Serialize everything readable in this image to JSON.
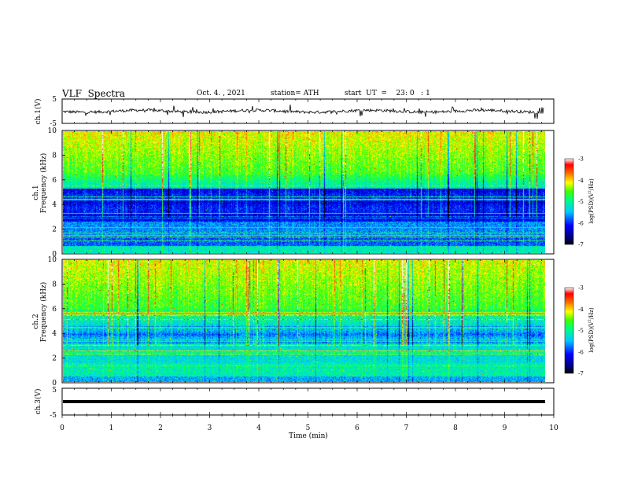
{
  "header": {
    "title": "VLF  Spectra",
    "date": "Oct. 4. , 2021",
    "station": "station= ATH",
    "start": "start  UT  =    23: 0   : 1"
  },
  "chart_data": [
    {
      "type": "line",
      "name": "ch.1 waveform",
      "ylabel": "ch.1(V)",
      "ylim": [
        -5,
        5
      ],
      "yticks": [
        "5",
        "-5"
      ],
      "xlim": [
        0,
        10
      ],
      "data_xlim": [
        0,
        9.8
      ],
      "baseline": 0.0,
      "color": "#000000"
    },
    {
      "type": "heatmap",
      "name": "ch.1 spectrogram",
      "ylabel": "ch.1\nFrequency  (kHz)",
      "ylim": [
        0,
        10
      ],
      "yticks": [
        "0",
        "2",
        "4",
        "6",
        "8",
        "10"
      ],
      "xlim": [
        0,
        10
      ],
      "data_xlim": [
        0,
        9.8
      ],
      "colorbar": {
        "label": "log(PSD)(V²/Hz)",
        "range": [
          -7,
          -3
        ],
        "ticks": [
          "-3",
          "-4",
          "-5",
          "-6",
          "-7"
        ]
      }
    },
    {
      "type": "heatmap",
      "name": "ch.2 spectrogram",
      "ylabel": "ch.2\nFrequency  (kHz)",
      "ylim": [
        0,
        10
      ],
      "yticks": [
        "0",
        "2",
        "4",
        "6",
        "8",
        "10"
      ],
      "xlim": [
        0,
        10
      ],
      "data_xlim": [
        0,
        9.8
      ],
      "colorbar": {
        "label": "log(PSD)(V²/Hz)",
        "range": [
          -7,
          -3
        ],
        "ticks": [
          "-3",
          "-4",
          "-5",
          "-6",
          "-7"
        ]
      }
    },
    {
      "type": "line",
      "name": "ch.3 waveform",
      "ylabel": "ch.3(V)",
      "ylim": [
        -5,
        5
      ],
      "yticks": [
        "5",
        "-5"
      ],
      "xlim": [
        0,
        10
      ],
      "data_xlim": [
        0,
        9.8
      ],
      "baseline": 0.0,
      "color": "#000000"
    }
  ],
  "xaxis": {
    "label": "Time  (min)",
    "ticks": [
      "0",
      "1",
      "2",
      "3",
      "4",
      "5",
      "6",
      "7",
      "8",
      "9",
      "10"
    ]
  }
}
